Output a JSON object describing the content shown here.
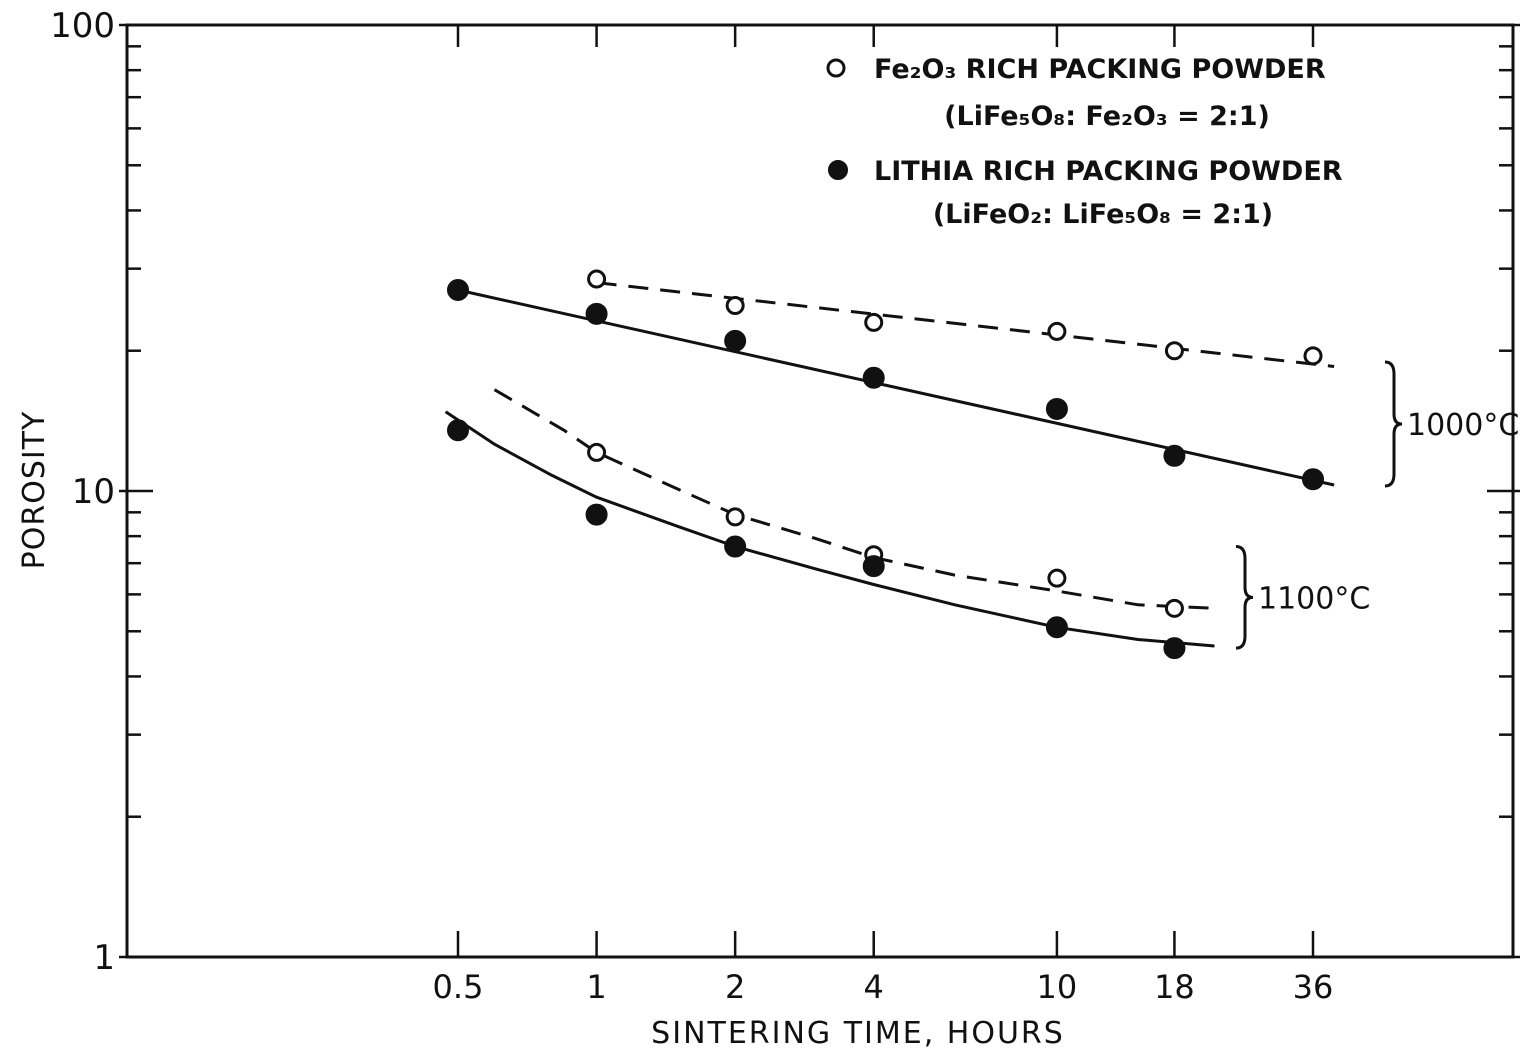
{
  "chart_data": {
    "type": "scatter",
    "title": "",
    "xlabel": "SINTERING TIME, HOURS",
    "ylabel": "POROSITY",
    "x_scale": "log",
    "y_scale": "log",
    "x_ticks": [
      {
        "value": 0.5,
        "label": "0.5"
      },
      {
        "value": 1,
        "label": "1"
      },
      {
        "value": 2,
        "label": "2"
      },
      {
        "value": 4,
        "label": "4"
      },
      {
        "value": 10,
        "label": "10"
      },
      {
        "value": 18,
        "label": "18"
      },
      {
        "value": 36,
        "label": "36"
      }
    ],
    "y_ticks": [
      {
        "value": 1,
        "label": "1"
      },
      {
        "value": 10,
        "label": "10"
      },
      {
        "value": 100,
        "label": "100"
      }
    ],
    "ylim": [
      1,
      100
    ],
    "grid": false,
    "legend_position": "top-right",
    "legend": [
      {
        "marker": "open-circle",
        "label": "Fe₂O₃ RICH PACKING POWDER",
        "sublabel": "(LiFe₅O₈: Fe₂O₃ = 2:1)"
      },
      {
        "marker": "filled-circle",
        "label": "LITHIA RICH PACKING POWDER",
        "sublabel": "(LiFeO₂: LiFe₅O₈ = 2:1)"
      }
    ],
    "groups": [
      {
        "label": "1000°C",
        "y_range": [
          10.3,
          27
        ]
      },
      {
        "label": "1100°C",
        "y_range": [
          4.6,
          7.6
        ]
      }
    ],
    "series": [
      {
        "marker": "open-circle",
        "line": "dashed",
        "group": "1000°C",
        "x": [
          1,
          2,
          4,
          10,
          18,
          36
        ],
        "y": [
          28.5,
          25,
          23,
          22,
          20,
          19.5
        ],
        "fit_x": [
          1,
          40
        ],
        "fit_y": [
          28,
          18.5
        ]
      },
      {
        "marker": "filled-circle",
        "line": "solid",
        "group": "1000°C",
        "x": [
          0.5,
          1,
          2,
          4,
          10,
          18,
          36
        ],
        "y": [
          27,
          24,
          21,
          17.5,
          15,
          11.9,
          10.6
        ],
        "fit_x": [
          0.5,
          40
        ],
        "fit_y": [
          27,
          10.3
        ]
      },
      {
        "marker": "open-circle",
        "line": "dashed",
        "group": "1100°C",
        "x": [
          1,
          2,
          4,
          10,
          18
        ],
        "y": [
          12.1,
          8.8,
          7.3,
          6.5,
          5.6
        ],
        "fit_x": [
          0.6,
          0.85,
          1,
          1.5,
          2,
          3,
          4,
          6,
          10,
          15,
          22
        ],
        "fit_y": [
          16.5,
          13.5,
          12.1,
          10.1,
          8.9,
          7.9,
          7.2,
          6.6,
          6.1,
          5.7,
          5.6
        ]
      },
      {
        "marker": "filled-circle",
        "line": "solid",
        "group": "1100°C",
        "x": [
          0.5,
          1,
          2,
          4,
          10,
          18
        ],
        "y": [
          13.5,
          8.9,
          7.6,
          6.9,
          5.1,
          4.6
        ],
        "fit_x": [
          0.47,
          0.6,
          0.8,
          1,
          1.5,
          2,
          3,
          4,
          6,
          10,
          15,
          22
        ],
        "fit_y": [
          14.8,
          12.6,
          10.8,
          9.7,
          8.4,
          7.6,
          6.8,
          6.3,
          5.7,
          5.1,
          4.8,
          4.65
        ]
      }
    ]
  }
}
